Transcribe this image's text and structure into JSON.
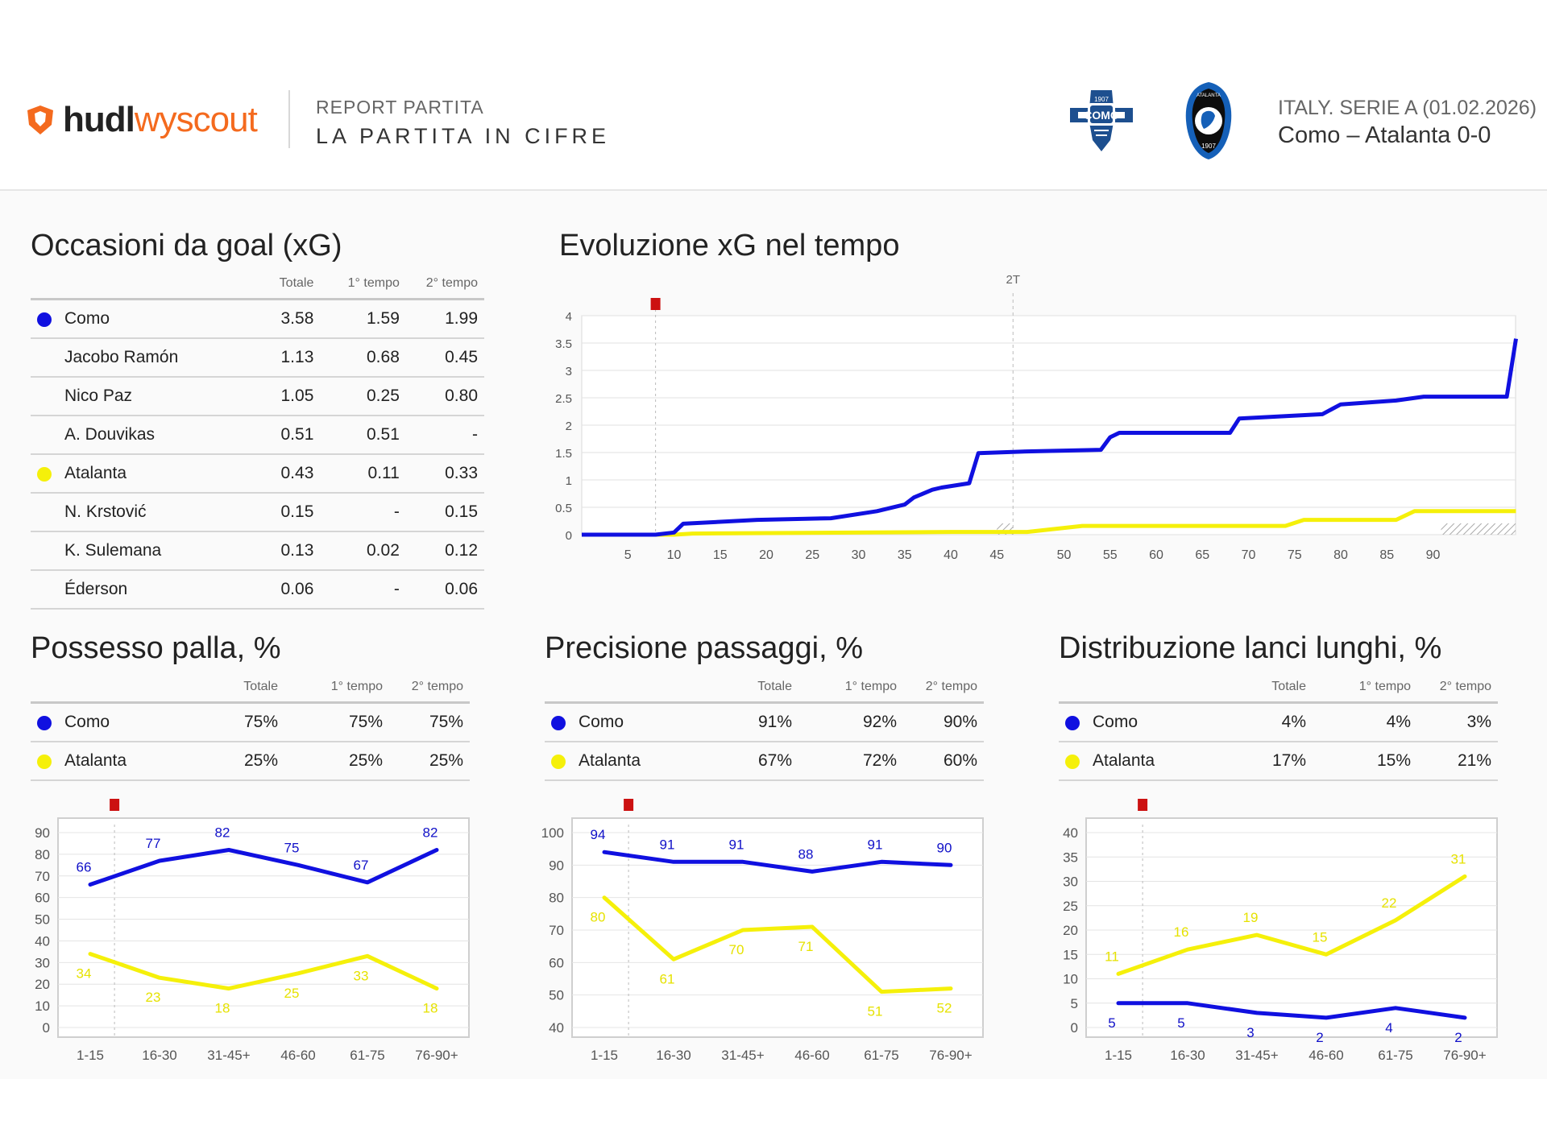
{
  "header": {
    "logo_hudl": "hudl",
    "logo_wyscout": "wyscout",
    "report_label": "REPORT PARTITA",
    "report_title": "LA PARTITA IN CIFRE",
    "competition": "ITALY. SERIE A (01.02.2026)",
    "match": "Como – Atalanta 0-0",
    "badge_home_icon": "como-crest-icon",
    "badge_home_text": "COMO",
    "badge_home_year": "1907",
    "badge_away_icon": "atalanta-crest-icon",
    "badge_away_text": "ATALANTA",
    "badge_away_year": "1907"
  },
  "colors": {
    "como": "#1010e0",
    "atalanta": "#f5f00a",
    "red_marker": "#cc1111",
    "accent": "#f46a1e"
  },
  "xg_table": {
    "title": "Occasioni da goal (xG)",
    "columns": [
      "Totale",
      "1° tempo",
      "2° tempo"
    ],
    "rows": [
      {
        "name": "Como",
        "team": "como",
        "values": [
          "3.58",
          "1.59",
          "1.99"
        ]
      },
      {
        "name": "Jacobo Ramón",
        "team": "",
        "values": [
          "1.13",
          "0.68",
          "0.45"
        ]
      },
      {
        "name": "Nico Paz",
        "team": "",
        "values": [
          "1.05",
          "0.25",
          "0.80"
        ]
      },
      {
        "name": "A. Douvikas",
        "team": "",
        "values": [
          "0.51",
          "0.51",
          "-"
        ]
      },
      {
        "name": "Atalanta",
        "team": "atalanta",
        "values": [
          "0.43",
          "0.11",
          "0.33"
        ]
      },
      {
        "name": "N. Krstović",
        "team": "",
        "values": [
          "0.15",
          "-",
          "0.15"
        ]
      },
      {
        "name": "K. Sulemana",
        "team": "",
        "values": [
          "0.13",
          "0.02",
          "0.12"
        ]
      },
      {
        "name": "Éderson",
        "team": "",
        "values": [
          "0.06",
          "-",
          "0.06"
        ]
      }
    ]
  },
  "possession_table": {
    "title": "Possesso palla, %",
    "columns": [
      "Totale",
      "1° tempo",
      "2° tempo"
    ],
    "rows": [
      {
        "name": "Como",
        "team": "como",
        "values": [
          "75%",
          "75%",
          "75%"
        ]
      },
      {
        "name": "Atalanta",
        "team": "atalanta",
        "values": [
          "25%",
          "25%",
          "25%"
        ]
      }
    ]
  },
  "passing_table": {
    "title": "Precisione passaggi, %",
    "columns": [
      "Totale",
      "1° tempo",
      "2° tempo"
    ],
    "rows": [
      {
        "name": "Como",
        "team": "como",
        "values": [
          "91%",
          "92%",
          "90%"
        ]
      },
      {
        "name": "Atalanta",
        "team": "atalanta",
        "values": [
          "67%",
          "72%",
          "60%"
        ]
      }
    ]
  },
  "longball_table": {
    "title": "Distribuzione lanci lunghi, %",
    "columns": [
      "Totale",
      "1° tempo",
      "2° tempo"
    ],
    "rows": [
      {
        "name": "Como",
        "team": "como",
        "values": [
          "4%",
          "4%",
          "3%"
        ]
      },
      {
        "name": "Atalanta",
        "team": "atalanta",
        "values": [
          "17%",
          "15%",
          "21%"
        ]
      }
    ]
  },
  "chart_data": [
    {
      "id": "xg",
      "type": "line",
      "title": "Evoluzione xG nel tempo",
      "step": true,
      "x_ticks": [
        "5",
        "10",
        "15",
        "20",
        "25",
        "30",
        "35",
        "40",
        "45",
        "50",
        "55",
        "60",
        "65",
        "70",
        "75",
        "80",
        "85",
        "90"
      ],
      "y_ticks": [
        "0",
        "0.5",
        "1",
        "1.5",
        "2",
        "2.5",
        "3",
        "3.5",
        "4"
      ],
      "ylim": [
        0,
        4
      ],
      "half_label": "2T",
      "red_card_minute": 8,
      "series": [
        {
          "name": "Como",
          "color": "#1010e0",
          "x": [
            0,
            8,
            10,
            11,
            19,
            27,
            32,
            35,
            36,
            38,
            39,
            42,
            43,
            46,
            54,
            55,
            56,
            68,
            69,
            78,
            80,
            86,
            89,
            98,
            99
          ],
          "y": [
            0,
            0,
            0.04,
            0.2,
            0.27,
            0.3,
            0.43,
            0.55,
            0.68,
            0.82,
            0.86,
            0.94,
            1.49,
            1.52,
            1.55,
            1.78,
            1.86,
            1.86,
            2.12,
            2.2,
            2.38,
            2.45,
            2.52,
            2.52,
            3.58
          ]
        },
        {
          "name": "Atalanta",
          "color": "#f5f00a",
          "x": [
            0,
            10,
            12,
            40,
            46,
            52,
            74,
            76,
            86,
            88,
            99
          ],
          "y": [
            0,
            0,
            0.02,
            0.05,
            0.05,
            0.16,
            0.16,
            0.27,
            0.27,
            0.43,
            0.43
          ]
        }
      ]
    },
    {
      "id": "possession",
      "type": "line",
      "categories": [
        "1-15",
        "16-30",
        "31-45+",
        "46-60",
        "61-75",
        "76-90+"
      ],
      "y_ticks": [
        "0",
        "10",
        "20",
        "30",
        "40",
        "50",
        "60",
        "70",
        "80",
        "90"
      ],
      "ylim": [
        0,
        90
      ],
      "red_card_index": 0.35,
      "series": [
        {
          "name": "Como",
          "color": "#1010e0",
          "values": [
            66,
            77,
            82,
            75,
            67,
            82
          ],
          "labels": [
            "66",
            "77",
            "82",
            "75",
            "67",
            "82"
          ]
        },
        {
          "name": "Atalanta",
          "color": "#f5f00a",
          "values": [
            34,
            23,
            18,
            25,
            33,
            18
          ],
          "labels": [
            "34",
            "23",
            "18",
            "25",
            "33",
            "18"
          ]
        }
      ]
    },
    {
      "id": "passing",
      "type": "line",
      "categories": [
        "1-15",
        "16-30",
        "31-45+",
        "46-60",
        "61-75",
        "76-90+"
      ],
      "y_ticks": [
        "40",
        "50",
        "60",
        "70",
        "80",
        "90",
        "100"
      ],
      "ylim": [
        40,
        100
      ],
      "red_card_index": 0.35,
      "series": [
        {
          "name": "Como",
          "color": "#1010e0",
          "values": [
            94,
            91,
            91,
            88,
            91,
            90
          ],
          "labels": [
            "94",
            "91",
            "91",
            "88",
            "91",
            "90"
          ]
        },
        {
          "name": "Atalanta",
          "color": "#f5f00a",
          "values": [
            80,
            61,
            70,
            71,
            51,
            52
          ],
          "labels": [
            "80",
            "61",
            "70",
            "71",
            "51",
            "52"
          ]
        }
      ]
    },
    {
      "id": "longball",
      "type": "line",
      "categories": [
        "1-15",
        "16-30",
        "31-45+",
        "46-60",
        "61-75",
        "76-90+"
      ],
      "y_ticks": [
        "0",
        "5",
        "10",
        "15",
        "20",
        "25",
        "30",
        "35",
        "40"
      ],
      "ylim": [
        0,
        40
      ],
      "red_card_index": 0.35,
      "series": [
        {
          "name": "Como",
          "color": "#1010e0",
          "values": [
            5,
            5,
            3,
            2,
            4,
            2
          ],
          "labels": [
            "5",
            "5",
            "3",
            "2",
            "4",
            "2"
          ]
        },
        {
          "name": "Atalanta",
          "color": "#f5f00a",
          "values": [
            11,
            16,
            19,
            15,
            22,
            31
          ],
          "labels": [
            "11",
            "16",
            "19",
            "15",
            "22",
            "31"
          ]
        }
      ]
    }
  ]
}
